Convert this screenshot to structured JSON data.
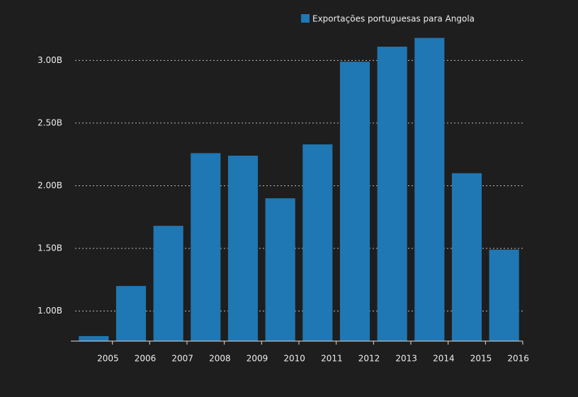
{
  "chart_data": {
    "type": "bar",
    "categories": [
      "2005",
      "2006",
      "2007",
      "2008",
      "2009",
      "2010",
      "2011",
      "2012",
      "2013",
      "2014",
      "2015",
      "2016"
    ],
    "series": [
      {
        "name": "Exportações portuguesas para Angola",
        "color": "#1f77b4",
        "values": [
          800000000,
          1200000000,
          1680000000,
          2260000000,
          2240000000,
          1900000000,
          2330000000,
          2990000000,
          3110000000,
          3180000000,
          2100000000,
          1490000000
        ]
      }
    ],
    "ylim": [
      760000000,
      3200000000
    ],
    "yticks": [
      {
        "value": 1000000000,
        "label": "1.00B"
      },
      {
        "value": 1500000000,
        "label": "1.50B"
      },
      {
        "value": 2000000000,
        "label": "2.00B"
      },
      {
        "value": 2500000000,
        "label": "2.50B"
      },
      {
        "value": 3000000000,
        "label": "3.00B"
      }
    ],
    "grid": true,
    "legend": "top"
  }
}
